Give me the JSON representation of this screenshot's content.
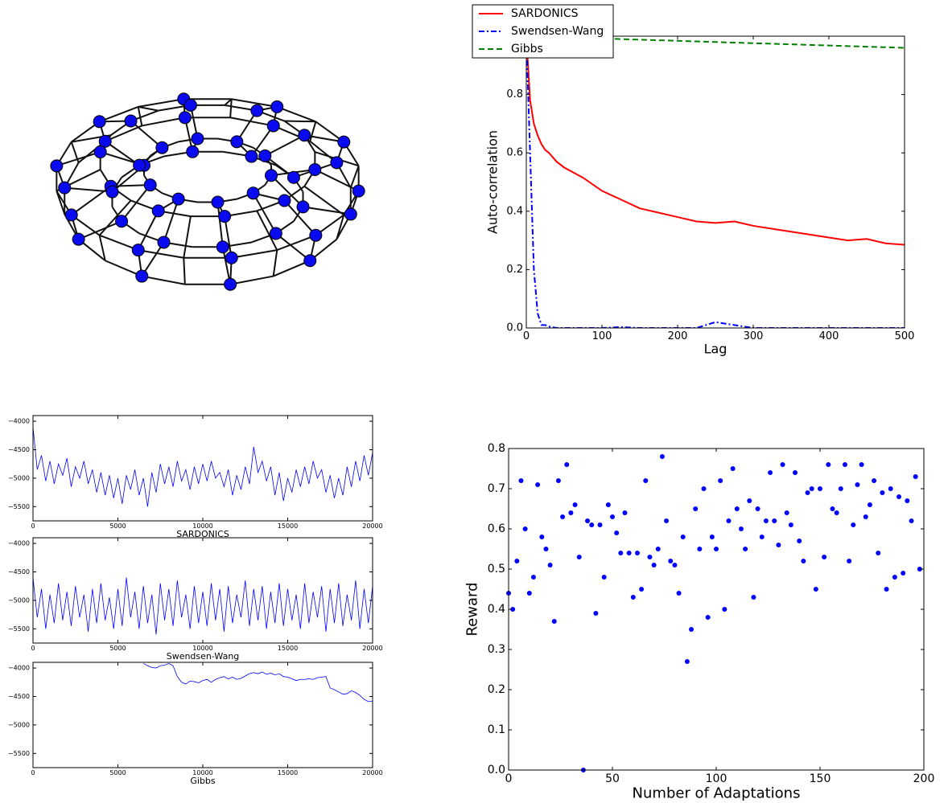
{
  "chart_data": [
    {
      "type": "line",
      "xlabel": "Lag",
      "ylabel": "Auto-correlation",
      "legend": "upper left",
      "x": [
        0,
        5,
        10,
        15,
        20,
        25,
        30,
        40,
        50,
        75,
        100,
        125,
        150,
        175,
        200,
        225,
        250,
        275,
        300,
        325,
        350,
        375,
        400,
        425,
        450,
        475,
        500
      ],
      "series": [
        {
          "name": "SARDONICS",
          "color": "#ff0000",
          "linestyle": "solid",
          "values": [
            1.0,
            0.78,
            0.7,
            0.66,
            0.63,
            0.61,
            0.6,
            0.57,
            0.55,
            0.515,
            0.47,
            0.44,
            0.41,
            0.395,
            0.38,
            0.365,
            0.36,
            0.365,
            0.35,
            0.34,
            0.33,
            0.32,
            0.31,
            0.3,
            0.305,
            0.29,
            0.285
          ]
        },
        {
          "name": "Swendsen-Wang",
          "color": "#0000ff",
          "linestyle": "dashdot",
          "values": [
            1.0,
            0.6,
            0.2,
            0.05,
            0.01,
            0.01,
            0.005,
            0,
            0,
            0,
            0,
            0.003,
            0,
            0,
            0,
            0,
            0.02,
            0.01,
            0,
            0,
            0,
            0,
            0,
            0,
            0,
            0,
            0
          ]
        },
        {
          "name": "Gibbs",
          "color": "#008000",
          "linestyle": "dashed",
          "values": [
            1.0,
            1.0,
            0.999,
            0.999,
            0.998,
            0.998,
            0.998,
            0.997,
            0.996,
            0.994,
            0.992,
            0.99,
            0.988,
            0.986,
            0.984,
            0.982,
            0.98,
            0.978,
            0.976,
            0.974,
            0.972,
            0.97,
            0.968,
            0.966,
            0.964,
            0.962,
            0.96
          ]
        }
      ],
      "xlim": [
        0,
        500
      ],
      "xticks": [
        0,
        100,
        200,
        300,
        400,
        500
      ],
      "ylim": [
        0,
        1
      ],
      "yticks": [
        {
          "value": 0,
          "label": "0.0"
        },
        0.2,
        0.4,
        0.6,
        0.8
      ]
    },
    {
      "type": "line",
      "xlabel": "SARDONICS",
      "color": "#0000ff",
      "x": [
        0,
        250,
        500,
        750,
        1000,
        1250,
        1500,
        1750,
        2000,
        2250,
        2500,
        2750,
        3000,
        3250,
        3500,
        3750,
        4000,
        4250,
        4500,
        4750,
        5000,
        5250,
        5500,
        5750,
        6000,
        6250,
        6500,
        6750,
        7000,
        7250,
        7500,
        7750,
        8000,
        8250,
        8500,
        8750,
        9000,
        9250,
        9500,
        9750,
        10000,
        10250,
        10500,
        10750,
        11000,
        11250,
        11500,
        11750,
        12000,
        12250,
        12500,
        12750,
        13000,
        13250,
        13500,
        13750,
        14000,
        14250,
        14500,
        14750,
        15000,
        15250,
        15500,
        15750,
        16000,
        16250,
        16500,
        16750,
        17000,
        17250,
        17500,
        17750,
        18000,
        18250,
        18500,
        18750,
        19000,
        19250,
        19500,
        19750,
        20000
      ],
      "values": [
        -4100,
        -4850,
        -4600,
        -5050,
        -4700,
        -5100,
        -4750,
        -4950,
        -4650,
        -5150,
        -4800,
        -5000,
        -4700,
        -5100,
        -4850,
        -5250,
        -4900,
        -5300,
        -4950,
        -5350,
        -5000,
        -5450,
        -4950,
        -5200,
        -4850,
        -5300,
        -5000,
        -5500,
        -4900,
        -5250,
        -4750,
        -5100,
        -4800,
        -5150,
        -4700,
        -5050,
        -4850,
        -5200,
        -4800,
        -5100,
        -4750,
        -5050,
        -4700,
        -5000,
        -4900,
        -5150,
        -4850,
        -5300,
        -4950,
        -5200,
        -4800,
        -5100,
        -4450,
        -4900,
        -4700,
        -5050,
        -4800,
        -5300,
        -4900,
        -5400,
        -5000,
        -5250,
        -4850,
        -5150,
        -4800,
        -5100,
        -4700,
        -5000,
        -4850,
        -5250,
        -4950,
        -5350,
        -5000,
        -5300,
        -4800,
        -5150,
        -4700,
        -5050,
        -4600,
        -4950,
        -4550
      ],
      "xlim": [
        0,
        20000
      ],
      "xticks": [
        0,
        5000,
        10000,
        15000,
        20000
      ],
      "ylim": [
        -5750,
        -3900
      ],
      "yticks": [
        {
          "value": -4000,
          "label": "−4000"
        },
        {
          "value": -4500,
          "label": "−4500"
        },
        {
          "value": -5000,
          "label": "−5000"
        },
        {
          "value": -5500,
          "label": "−5500"
        }
      ]
    },
    {
      "type": "line",
      "xlabel": "Swendsen-Wang",
      "color": "#0000ff",
      "x": [
        0,
        250,
        500,
        750,
        1000,
        1250,
        1500,
        1750,
        2000,
        2250,
        2500,
        2750,
        3000,
        3250,
        3500,
        3750,
        4000,
        4250,
        4500,
        4750,
        5000,
        5250,
        5500,
        5750,
        6000,
        6250,
        6500,
        6750,
        7000,
        7250,
        7500,
        7750,
        8000,
        8250,
        8500,
        8750,
        9000,
        9250,
        9500,
        9750,
        10000,
        10250,
        10500,
        10750,
        11000,
        11250,
        11500,
        11750,
        12000,
        12250,
        12500,
        12750,
        13000,
        13250,
        13500,
        13750,
        14000,
        14250,
        14500,
        14750,
        15000,
        15250,
        15500,
        15750,
        16000,
        16250,
        16500,
        16750,
        17000,
        17250,
        17500,
        17750,
        18000,
        18250,
        18500,
        18750,
        19000,
        19250,
        19500,
        19750,
        20000
      ],
      "values": [
        -4600,
        -5300,
        -4800,
        -5500,
        -4900,
        -5400,
        -4700,
        -5350,
        -4850,
        -5450,
        -4750,
        -5300,
        -4900,
        -5550,
        -4800,
        -5400,
        -4700,
        -5350,
        -4950,
        -5500,
        -4800,
        -5450,
        -4600,
        -5300,
        -4850,
        -5500,
        -4750,
        -5400,
        -4900,
        -5600,
        -4700,
        -5350,
        -4800,
        -5450,
        -4650,
        -5300,
        -4900,
        -5500,
        -4750,
        -5400,
        -4850,
        -5450,
        -4700,
        -5350,
        -4800,
        -5550,
        -4750,
        -5400,
        -4900,
        -5300,
        -4650,
        -5450,
        -4800,
        -5350,
        -4750,
        -5500,
        -4850,
        -5400,
        -4700,
        -5450,
        -4800,
        -5350,
        -4900,
        -5500,
        -4700,
        -5400,
        -4850,
        -5300,
        -4750,
        -5550,
        -4800,
        -5400,
        -4700,
        -5450,
        -4900,
        -5350,
        -4650,
        -5500,
        -4800,
        -5400,
        -4750
      ],
      "xlim": [
        0,
        20000
      ],
      "xticks": [
        0,
        5000,
        10000,
        15000,
        20000
      ],
      "ylim": [
        -5750,
        -3900
      ],
      "yticks": [
        {
          "value": -4000,
          "label": "−4000"
        },
        {
          "value": -4500,
          "label": "−4500"
        },
        {
          "value": -5000,
          "label": "−5000"
        },
        {
          "value": -5500,
          "label": "−5500"
        }
      ]
    },
    {
      "type": "line",
      "xlabel": "Gibbs",
      "color": "#0000ff",
      "x": [
        0,
        250,
        500,
        750,
        1000,
        1250,
        1500,
        1750,
        2000,
        2250,
        2500,
        2750,
        3000,
        3250,
        3500,
        3750,
        4000,
        4250,
        4500,
        4750,
        5000,
        5250,
        5500,
        5750,
        6000,
        6250,
        6500,
        6750,
        7000,
        7250,
        7500,
        7750,
        8000,
        8250,
        8500,
        8750,
        9000,
        9250,
        9500,
        9750,
        10000,
        10250,
        10500,
        10750,
        11000,
        11250,
        11500,
        11750,
        12000,
        12250,
        12500,
        12750,
        13000,
        13250,
        13500,
        13750,
        14000,
        14250,
        14500,
        14750,
        15000,
        15250,
        15500,
        15750,
        16000,
        16250,
        16500,
        16750,
        17000,
        17250,
        17500,
        17750,
        18000,
        18250,
        18500,
        18750,
        19000,
        19250,
        19500,
        19750,
        20000
      ],
      "values": [
        null,
        null,
        null,
        null,
        null,
        null,
        null,
        null,
        null,
        null,
        null,
        null,
        null,
        null,
        null,
        null,
        null,
        null,
        null,
        null,
        null,
        null,
        null,
        null,
        null,
        null,
        -3920,
        -3960,
        -3990,
        -4000,
        -3960,
        -3950,
        -3920,
        -3960,
        -4150,
        -4250,
        -4280,
        -4230,
        -4240,
        -4260,
        -4220,
        -4200,
        -4250,
        -4200,
        -4170,
        -4150,
        -4190,
        -4160,
        -4200,
        -4180,
        -4140,
        -4100,
        -4080,
        -4100,
        -4070,
        -4110,
        -4090,
        -4120,
        -4100,
        -4150,
        -4160,
        -4190,
        -4220,
        -4200,
        -4200,
        -4190,
        -4200,
        -4170,
        -4160,
        -4150,
        -4350,
        -4380,
        -4420,
        -4460,
        -4450,
        -4400,
        -4430,
        -4480,
        -4550,
        -4590,
        -4580
      ],
      "xlim": [
        0,
        20000
      ],
      "xticks": [
        0,
        5000,
        10000,
        15000,
        20000
      ],
      "ylim": [
        -5750,
        -3900
      ],
      "yticks": [
        {
          "value": -4000,
          "label": "−4000"
        },
        {
          "value": -4500,
          "label": "−4500"
        },
        {
          "value": -5000,
          "label": "−5000"
        },
        {
          "value": -5500,
          "label": "−5500"
        }
      ]
    },
    {
      "type": "scatter",
      "xlabel": "Number of Adaptations",
      "ylabel": "Reward",
      "color": "#0000ff",
      "x": [
        0,
        2,
        4,
        6,
        8,
        10,
        12,
        14,
        16,
        18,
        20,
        22,
        24,
        26,
        28,
        30,
        32,
        34,
        36,
        38,
        40,
        42,
        44,
        46,
        48,
        50,
        52,
        54,
        56,
        58,
        60,
        62,
        64,
        66,
        68,
        70,
        72,
        74,
        76,
        78,
        80,
        82,
        84,
        86,
        88,
        90,
        92,
        94,
        96,
        98,
        100,
        102,
        104,
        106,
        108,
        110,
        112,
        114,
        116,
        118,
        120,
        122,
        124,
        126,
        128,
        130,
        132,
        134,
        136,
        138,
        140,
        142,
        144,
        146,
        148,
        150,
        152,
        154,
        156,
        158,
        160,
        162,
        164,
        166,
        168,
        170,
        172,
        174,
        176,
        178,
        180,
        182,
        184,
        186,
        188,
        190,
        192,
        194,
        196,
        198
      ],
      "values": [
        0.44,
        0.4,
        0.52,
        0.72,
        0.6,
        0.44,
        0.48,
        0.71,
        0.58,
        0.55,
        0.51,
        0.37,
        0.72,
        0.63,
        0.76,
        0.64,
        0.66,
        0.53,
        0.0,
        0.62,
        0.61,
        0.39,
        0.61,
        0.48,
        0.66,
        0.63,
        0.59,
        0.54,
        0.64,
        0.54,
        0.43,
        0.54,
        0.45,
        0.72,
        0.53,
        0.51,
        0.55,
        0.78,
        0.62,
        0.52,
        0.51,
        0.44,
        0.58,
        0.27,
        0.35,
        0.65,
        0.55,
        0.7,
        0.38,
        0.58,
        0.55,
        0.72,
        0.4,
        0.62,
        0.75,
        0.65,
        0.6,
        0.55,
        0.67,
        0.43,
        0.65,
        0.58,
        0.62,
        0.74,
        0.62,
        0.56,
        0.76,
        0.64,
        0.61,
        0.74,
        0.57,
        0.52,
        0.69,
        0.7,
        0.45,
        0.7,
        0.53,
        0.76,
        0.65,
        0.64,
        0.7,
        0.76,
        0.52,
        0.61,
        0.71,
        0.76,
        0.63,
        0.66,
        0.72,
        0.54,
        0.69,
        0.45,
        0.7,
        0.48,
        0.68,
        0.49,
        0.67,
        0.62,
        0.73,
        0.5
      ],
      "xlim": [
        0,
        200
      ],
      "xticks": [
        0,
        50,
        100,
        150,
        200
      ],
      "ylim": [
        0,
        0.8
      ],
      "yticks": [
        {
          "value": 0,
          "label": "0.0"
        },
        0.1,
        0.2,
        0.3,
        0.4,
        0.5,
        0.6,
        0.7,
        0.8
      ]
    }
  ]
}
